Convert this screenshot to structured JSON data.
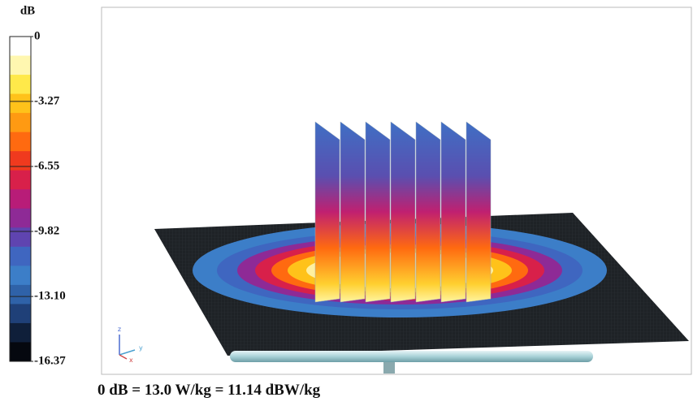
{
  "colorbar": {
    "unit": "dB",
    "range": [
      -16.37,
      0
    ],
    "ticks": [
      0,
      -3.27,
      -6.55,
      -9.82,
      {
        "value": -13.1,
        "label": "-13.10"
      },
      -16.37
    ],
    "colors": [
      "#ffffff",
      "#fff7b0",
      "#ffe94a",
      "#ffc21a",
      "#ff9a12",
      "#ff6a10",
      "#f03a1e",
      "#d8204a",
      "#b81c78",
      "#8e2a96",
      "#5f44b0",
      "#3f66c0",
      "#3c7ec8",
      "#2f62a8",
      "#1f4078",
      "#0f1f3a",
      "#05080f"
    ]
  },
  "axes": {
    "x": "x",
    "y": "y",
    "z": "z"
  },
  "caption": "0 dB = 13.0 W/kg = 11.14 dBW/kg"
}
